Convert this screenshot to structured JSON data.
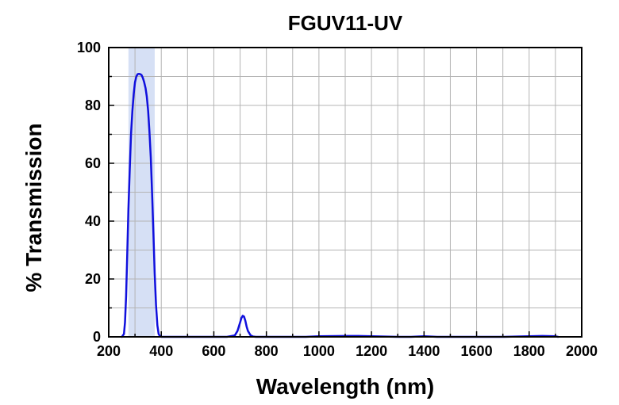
{
  "chart_data": {
    "type": "line",
    "title": "FGUV11-UV",
    "xlabel": "Wavelength (nm)",
    "ylabel": "% Transmission",
    "xlim": [
      200,
      2000
    ],
    "ylim": [
      0,
      100
    ],
    "xticks": [
      "200",
      "400",
      "600",
      "800",
      "1000",
      "1200",
      "1400",
      "1600",
      "1800",
      "2000"
    ],
    "yticks": [
      "0",
      "20",
      "40",
      "60",
      "80",
      "100"
    ],
    "grid": true,
    "highlight_band": {
      "x_start": 275,
      "x_end": 375,
      "color": "#d6e0f5"
    },
    "series": [
      {
        "color": "#1010dd",
        "x": [
          250,
          258,
          262,
          266,
          270,
          275,
          280,
          285,
          290,
          295,
          300,
          305,
          310,
          315,
          320,
          325,
          330,
          335,
          340,
          345,
          350,
          355,
          360,
          365,
          370,
          375,
          380,
          385,
          390,
          395,
          400,
          420,
          500,
          600,
          650,
          680,
          690,
          700,
          705,
          710,
          715,
          720,
          725,
          730,
          740,
          750,
          760,
          800,
          900,
          950,
          1000,
          1100,
          1150,
          1200,
          1250,
          1300,
          1350,
          1400,
          1450,
          1500,
          1600,
          1700,
          1800,
          1850,
          1900,
          1910
        ],
        "y": [
          0,
          1,
          5,
          14,
          27,
          44,
          58,
          70,
          78,
          84,
          88,
          90,
          90.8,
          90.9,
          90.8,
          90.5,
          89.5,
          88,
          86,
          83,
          78,
          71,
          62,
          50,
          36,
          22,
          11,
          4,
          1,
          0.2,
          0,
          0,
          0,
          0,
          0,
          0.5,
          2,
          5,
          6.5,
          7.3,
          7,
          5.5,
          3.5,
          2,
          0.5,
          0.1,
          0,
          0,
          0,
          0,
          0.2,
          0.3,
          0.3,
          0.2,
          0.1,
          0,
          0,
          0.2,
          0,
          0,
          0,
          0,
          0.2,
          0.3,
          0.2,
          0
        ]
      }
    ]
  }
}
